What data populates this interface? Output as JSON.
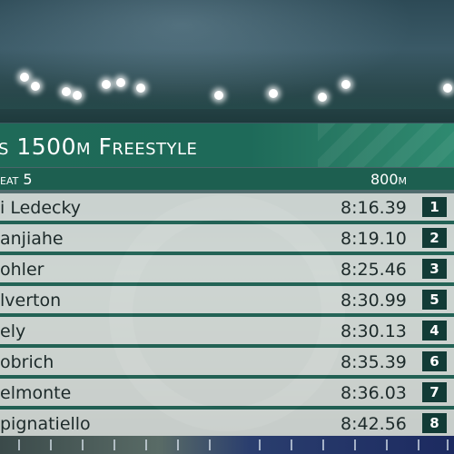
{
  "broadcast": {
    "title": "s 1500m Freestyle",
    "heat_label": "eat 5",
    "split_label": "800m"
  },
  "colors": {
    "title_band": "#1f6a58",
    "heat_band": "#1d5f50",
    "row_bg": "#e4e8e4",
    "place_box": "#123b36"
  },
  "results": [
    {
      "name": "i Ledecky",
      "time": "8:16.39",
      "place": "1"
    },
    {
      "name": "anjiahe",
      "time": "8:19.10",
      "place": "2"
    },
    {
      "name": "ohler",
      "time": "8:25.46",
      "place": "3"
    },
    {
      "name": "lverton",
      "time": "8:30.99",
      "place": "5"
    },
    {
      "name": "ely",
      "time": "8:30.13",
      "place": "4"
    },
    {
      "name": "obrich",
      "time": "8:35.39",
      "place": "6"
    },
    {
      "name": "elmonte",
      "time": "8:36.03",
      "place": "7"
    },
    {
      "name": "pignatiello",
      "time": "8:42.56",
      "place": "8"
    }
  ]
}
